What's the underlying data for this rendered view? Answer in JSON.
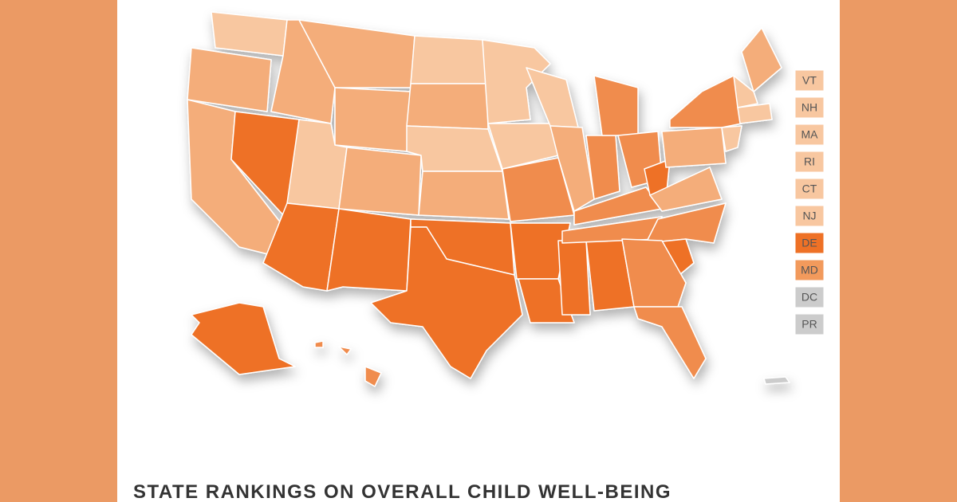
{
  "map": {
    "title": "STATE RANKINGS ON OVERALL CHILD WELL-BEING",
    "small_states": [
      {
        "label": "VT",
        "color": "#f8c7a0"
      },
      {
        "label": "NH",
        "color": "#f8c7a0"
      },
      {
        "label": "MA",
        "color": "#f8c7a0"
      },
      {
        "label": "RI",
        "color": "#f8c7a0"
      },
      {
        "label": "CT",
        "color": "#f8c7a0"
      },
      {
        "label": "NJ",
        "color": "#f8c7a0"
      },
      {
        "label": "DE",
        "color": "#ee7126"
      },
      {
        "label": "MD",
        "color": "#f29a5c"
      },
      {
        "label": "DC",
        "color": "#cccccc"
      },
      {
        "label": "PR",
        "color": "#cccccc"
      }
    ]
  }
}
